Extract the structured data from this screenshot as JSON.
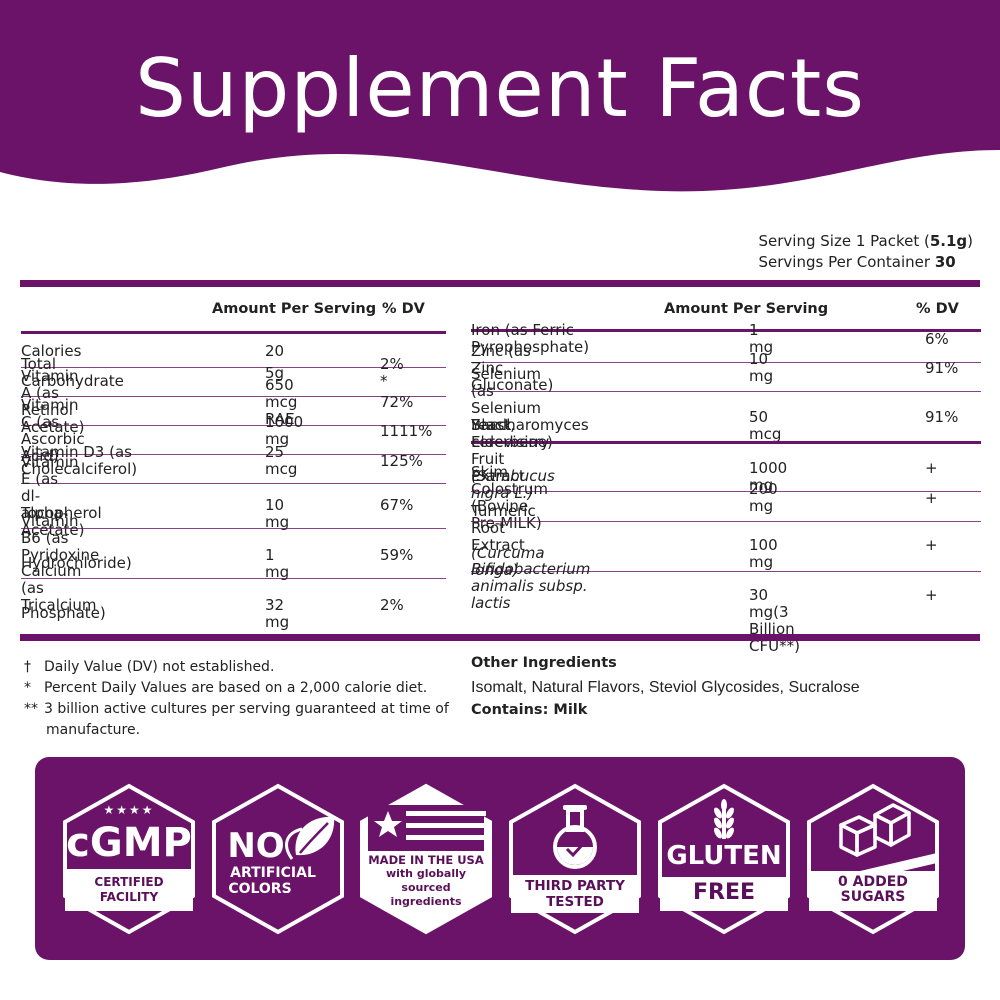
{
  "header": {
    "title": "Supplement Facts"
  },
  "serving": {
    "size_label": "Serving Size 1 Packet (",
    "size_value": "5.1g",
    "size_close": ")",
    "per_container_label": "Servings Per Container ",
    "per_container_value": "30"
  },
  "left_table": {
    "amount_header": "Amount Per Serving",
    "dv_header": "% DV",
    "rows": [
      {
        "name": "Calories",
        "amount": "20",
        "dv": ""
      },
      {
        "name": "Total Carbohydrate",
        "amount": "5g",
        "dv": "2% *"
      },
      {
        "name": "Vitamin A (as Retinol Acetate)",
        "amount": "650 mcg RAE",
        "dv": "72%"
      },
      {
        "name": "Vitamin C (as Ascorbic Acid)",
        "amount": "1000 mg",
        "dv": "1111%"
      },
      {
        "name": "Vitamin D3 (as Cholecalciferol)",
        "amount": "25 mcg",
        "dv": "125%"
      },
      {
        "name_l1": "Vitamin E (as dl-alpha-",
        "name_l2": "Tocopherol Acetate)",
        "amount": "10 mg",
        "dv": "67%"
      },
      {
        "name_l1": "Vitamin B6 (as Pyridoxine",
        "name_l2": "Hydrochloride)",
        "amount": "1 mg",
        "dv": "59%"
      },
      {
        "name_l1": "Calcium (as Tricalcium",
        "name_l2": "Phosphate)",
        "amount": "32 mg",
        "dv": "2%"
      }
    ]
  },
  "right_table": {
    "amount_header": "Amount Per Serving",
    "dv_header": "% DV",
    "rows": [
      {
        "name": "Iron (as Ferric Pyrophosphate)",
        "amount": "1 mg",
        "dv": "6%"
      },
      {
        "name": "Zinc (as Zinc Gluconate)",
        "amount": "10 mg",
        "dv": "91%"
      },
      {
        "name_l1": "Selenium (as Selenium Yeast,",
        "name_l2": "Saccharomyces cerevisiae)",
        "amount": "50 mcg",
        "dv": "91%"
      },
      {
        "name_l1": "Black Elderberry Fruit Extract",
        "name_l2": "(Sambucus nigra L.)",
        "amount": "1000 mg",
        "dv": "+"
      },
      {
        "name": "Skim Colostrum (Bovine Pre-MILK)",
        "amount": "200 mg",
        "dv": "+"
      },
      {
        "name_l1": "Turmeric Root Extract",
        "name_l2": "(Curcuma longa)",
        "amount": "100 mg",
        "dv": "+"
      },
      {
        "name_l1": "Bifidobacterium animalis subsp.",
        "name_l2": "lactis",
        "amount": "30 mg(3 Billion CFU**)",
        "dv": "+"
      }
    ]
  },
  "footnotes": [
    {
      "symbol": "†",
      "text": "Daily Value (DV) not established."
    },
    {
      "symbol": "*",
      "text": "Percent Daily Values are based on a 2,000 calorie diet."
    },
    {
      "symbol": "**",
      "text": "3 billion active cultures per serving guaranteed at time of",
      "text2": "manufacture."
    }
  ],
  "other": {
    "title": "Other Ingredients",
    "text": "Isomalt, Natural Flavors, Steviol Glycosides, Sucralose",
    "contains": "Contains: Milk"
  },
  "badges": {
    "cgmp": {
      "stars": "★★★★",
      "big": "cGMP",
      "line1": "CERTIFIED",
      "line2": "FACILITY"
    },
    "no_colors": {
      "big": "NO",
      "line1": "ARTIFICIAL",
      "line2": "COLORS"
    },
    "usa": {
      "line1": "MADE IN THE USA",
      "line2": "with globally",
      "line3": "sourced",
      "line4": "ingredients"
    },
    "third_party": {
      "line1": "THIRD PARTY",
      "line2": "TESTED"
    },
    "gluten": {
      "big": "GLUTEN",
      "banner": "FREE"
    },
    "sugars": {
      "line1": "0 ADDED",
      "line2": "SUGARS"
    }
  },
  "colors": {
    "brand_purple": "#6b1368",
    "white": "#ffffff"
  }
}
